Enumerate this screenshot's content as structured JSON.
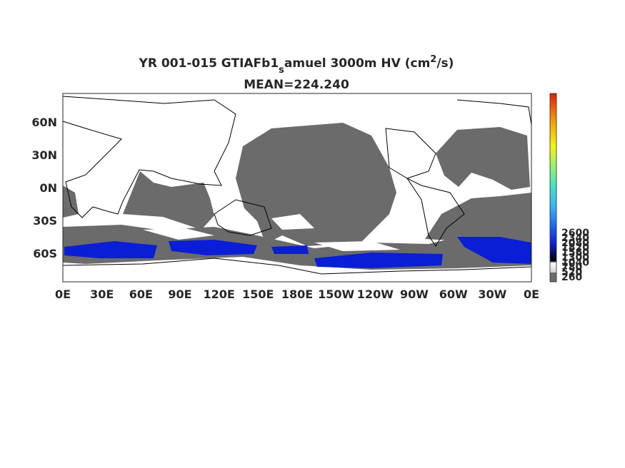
{
  "title": {
    "part1": "YR 001-015 GTIAFb1",
    "sub": "s",
    "part2": "amuel 3000m HV (cm",
    "sup": "2",
    "part3": "/s)",
    "mean": "MEAN=224.240"
  },
  "map": {
    "lat_labels": [
      "60N",
      "30N",
      "0N",
      "30S",
      "60S"
    ],
    "lon_labels": [
      "0E",
      "30E",
      "60E",
      "90E",
      "120E",
      "150E",
      "180E",
      "150W",
      "120W",
      "90W",
      "60W",
      "30W",
      "0E"
    ],
    "colorbar_labels": [
      "260",
      "520",
      "780",
      "1040",
      "1300",
      "1560",
      "1820",
      "2080",
      "2340",
      "2600"
    ]
  }
}
